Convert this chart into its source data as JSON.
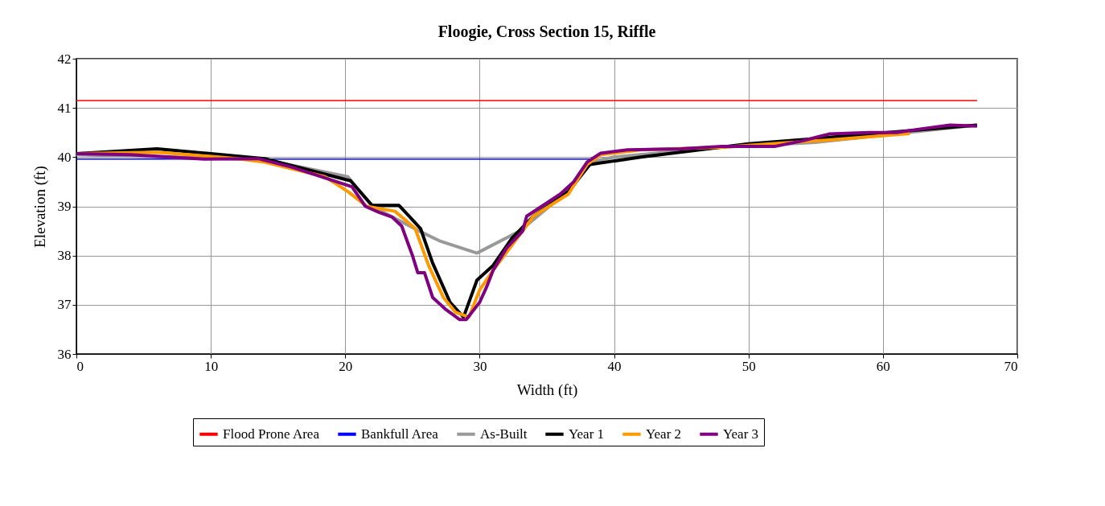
{
  "chart_data": {
    "type": "line",
    "title": "Floogie, Cross Section 15, Riffle",
    "xlabel": "Width (ft)",
    "ylabel": "Elevation (ft)",
    "xlim": [
      0,
      70
    ],
    "xticks": [
      0,
      10,
      20,
      30,
      40,
      50,
      60,
      70
    ],
    "ylim": [
      36,
      42
    ],
    "yticks": [
      36,
      37,
      38,
      39,
      40,
      41,
      42
    ],
    "grid": true,
    "legend": "bottom",
    "marker": "none",
    "line_style": "solid",
    "series": [
      {
        "name": "Flood Prone Area",
        "color": "#ff0000",
        "x": [
          0,
          67
        ],
        "values": [
          41.15,
          41.15
        ]
      },
      {
        "name": "Bankfull Area",
        "color": "#0000ff",
        "x": [
          0,
          38.2
        ],
        "values": [
          39.96,
          39.96
        ]
      },
      {
        "name": "As-Built",
        "color": "#999999",
        "x": [
          0,
          14,
          20.2,
          22,
          25.5,
          27,
          29.8,
          33,
          36.5,
          38.2,
          40,
          48,
          55,
          67
        ],
        "values": [
          40.05,
          39.95,
          39.6,
          39.0,
          38.5,
          38.3,
          38.05,
          38.5,
          39.3,
          39.9,
          40.0,
          40.2,
          40.3,
          40.65
        ]
      },
      {
        "name": "Year 1",
        "color": "#000000",
        "x": [
          0,
          6,
          10,
          14,
          20.4,
          22,
          24,
          25.6,
          26.5,
          27.8,
          28.8,
          29.8,
          31,
          32.4,
          34,
          36.6,
          38.2,
          42,
          50,
          56,
          67
        ],
        "values": [
          40.07,
          40.17,
          40.07,
          39.97,
          39.52,
          39.02,
          39.02,
          38.55,
          37.85,
          37.05,
          36.75,
          37.5,
          37.8,
          38.35,
          38.8,
          39.3,
          39.85,
          40.0,
          40.27,
          40.4,
          40.65
        ]
      },
      {
        "name": "Year 2",
        "color": "#ff9900",
        "x": [
          0,
          6,
          12,
          14,
          18.5,
          20.2,
          21.6,
          23.7,
          25.2,
          26.2,
          27.3,
          28.2,
          29.2,
          30,
          31,
          33.2,
          34,
          36.6,
          38,
          39,
          42,
          48,
          56,
          62
        ],
        "values": [
          40.07,
          40.1,
          39.97,
          39.9,
          39.6,
          39.3,
          39.0,
          38.9,
          38.55,
          37.8,
          37.15,
          36.85,
          36.75,
          37.3,
          37.7,
          38.5,
          38.8,
          39.25,
          39.85,
          40.05,
          40.15,
          40.2,
          40.35,
          40.48
        ]
      },
      {
        "name": "Year 3",
        "color": "#800080",
        "x": [
          0,
          4,
          9.5,
          13.5,
          16,
          20.5,
          21.5,
          22.5,
          23.5,
          24.2,
          25,
          25.4,
          25.9,
          26.5,
          27.5,
          28.5,
          29,
          30,
          30.5,
          31,
          32,
          33.2,
          33.5,
          34.5,
          36,
          37,
          38,
          39,
          41,
          45,
          48,
          50,
          52,
          54,
          56,
          59,
          61,
          63,
          65,
          67
        ],
        "values": [
          40.07,
          40.05,
          39.96,
          39.97,
          39.8,
          39.4,
          39.0,
          38.88,
          38.78,
          38.6,
          38.0,
          37.65,
          37.65,
          37.15,
          36.9,
          36.7,
          36.7,
          37.05,
          37.35,
          37.7,
          38.15,
          38.5,
          38.8,
          38.98,
          39.25,
          39.5,
          39.9,
          40.08,
          40.15,
          40.17,
          40.22,
          40.22,
          40.22,
          40.33,
          40.47,
          40.5,
          40.5,
          40.58,
          40.65,
          40.63
        ]
      }
    ]
  }
}
